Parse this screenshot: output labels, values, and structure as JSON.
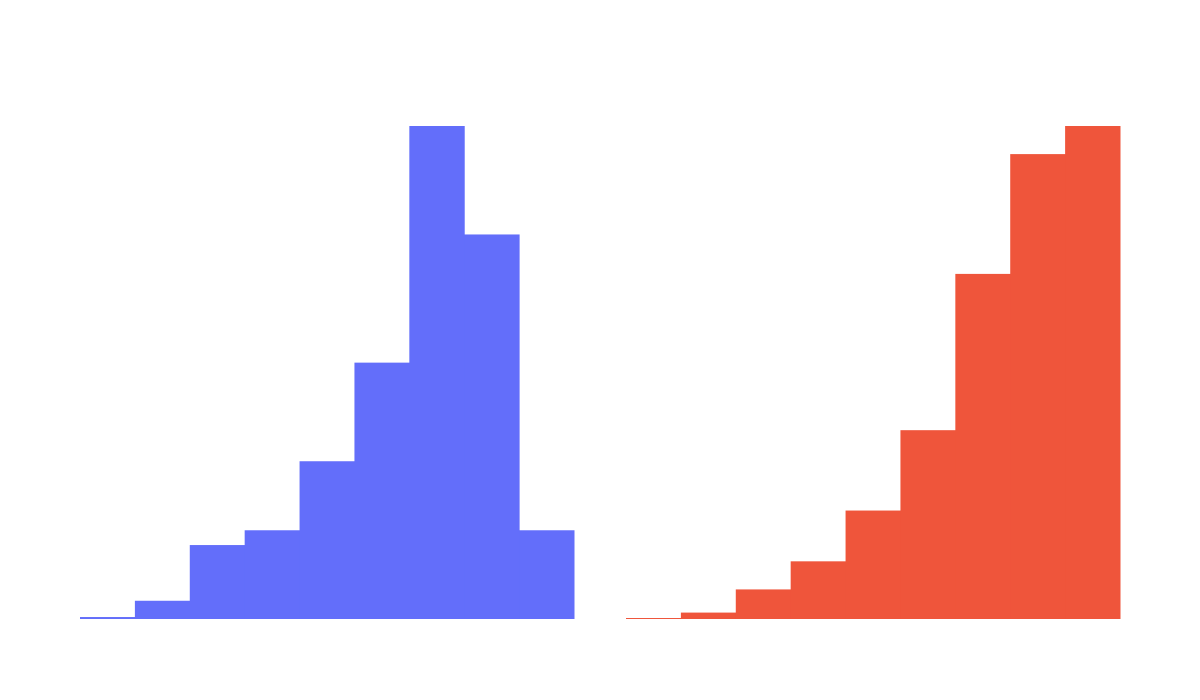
{
  "chart_data": [
    {
      "type": "bar",
      "title": "",
      "xlabel": "",
      "ylabel": "",
      "color": "#636EFA",
      "grid": false,
      "bins": 9,
      "values": [
        0.4,
        3.7,
        15,
        18,
        32,
        52,
        100,
        78,
        18
      ],
      "ylim": [
        0,
        100
      ]
    },
    {
      "type": "bar",
      "title": "",
      "xlabel": "",
      "ylabel": "",
      "color": "#EF553B",
      "grid": false,
      "bins": 9,
      "values": [
        0.2,
        1.3,
        6,
        11.7,
        22,
        38.3,
        70,
        94.3,
        100
      ],
      "ylim": [
        0,
        100
      ]
    }
  ]
}
